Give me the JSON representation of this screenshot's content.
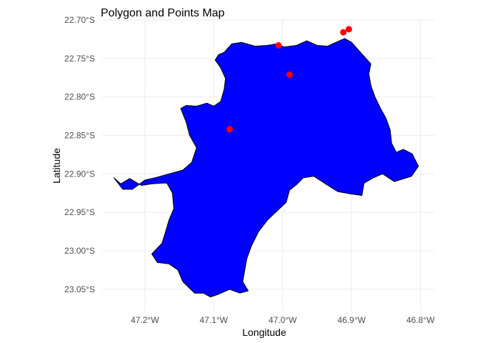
{
  "chart_data": {
    "type": "map",
    "title": "Polygon and Points Map",
    "xlabel": "Longitude",
    "ylabel": "Latitude",
    "xlim": [
      -47.262,
      -46.78
    ],
    "ylim": [
      -23.078,
      -22.7
    ],
    "x_ticks": [
      -47.2,
      -47.1,
      -47.0,
      -46.9,
      -46.8
    ],
    "x_tick_labels": [
      "47.2°W",
      "47.1°W",
      "47.0°W",
      "46.9°W",
      "46.8°W"
    ],
    "y_ticks": [
      -22.7,
      -22.75,
      -22.8,
      -22.85,
      -22.9,
      -22.95,
      -23.0,
      -23.05
    ],
    "y_tick_labels": [
      "22.70°S",
      "22.75°S",
      "22.80°S",
      "22.85°S",
      "22.90°S",
      "22.95°S",
      "23.00°S",
      "23.05°S"
    ],
    "grid": true,
    "polygon": {
      "fill": "#0000ff",
      "stroke": "#000000",
      "coords": [
        [
          -47.074,
          -22.731
        ],
        [
          -47.06,
          -22.729
        ],
        [
          -47.04,
          -22.734
        ],
        [
          -47.022,
          -22.733
        ],
        [
          -47.009,
          -22.731
        ],
        [
          -46.998,
          -22.735
        ],
        [
          -46.98,
          -22.733
        ],
        [
          -46.965,
          -22.727
        ],
        [
          -46.95,
          -22.733
        ],
        [
          -46.935,
          -22.734
        ],
        [
          -46.92,
          -22.728
        ],
        [
          -46.91,
          -22.724
        ],
        [
          -46.9,
          -22.729
        ],
        [
          -46.885,
          -22.744
        ],
        [
          -46.872,
          -22.757
        ],
        [
          -46.875,
          -22.77
        ],
        [
          -46.872,
          -22.785
        ],
        [
          -46.866,
          -22.8
        ],
        [
          -46.858,
          -22.815
        ],
        [
          -46.85,
          -22.828
        ],
        [
          -46.844,
          -22.843
        ],
        [
          -46.842,
          -22.86
        ],
        [
          -46.835,
          -22.872
        ],
        [
          -46.825,
          -22.868
        ],
        [
          -46.812,
          -22.874
        ],
        [
          -46.803,
          -22.89
        ],
        [
          -46.813,
          -22.903
        ],
        [
          -46.838,
          -22.91
        ],
        [
          -46.855,
          -22.9
        ],
        [
          -46.868,
          -22.905
        ],
        [
          -46.882,
          -22.912
        ],
        [
          -46.885,
          -22.928
        ],
        [
          -46.902,
          -22.926
        ],
        [
          -46.92,
          -22.923
        ],
        [
          -46.936,
          -22.914
        ],
        [
          -46.955,
          -22.903
        ],
        [
          -46.97,
          -22.905
        ],
        [
          -46.98,
          -22.914
        ],
        [
          -46.99,
          -22.921
        ],
        [
          -46.995,
          -22.937
        ],
        [
          -47.008,
          -22.948
        ],
        [
          -47.022,
          -22.96
        ],
        [
          -47.035,
          -22.975
        ],
        [
          -47.045,
          -22.993
        ],
        [
          -47.052,
          -23.01
        ],
        [
          -47.055,
          -23.025
        ],
        [
          -47.058,
          -23.04
        ],
        [
          -47.05,
          -23.052
        ],
        [
          -47.062,
          -23.055
        ],
        [
          -47.077,
          -23.05
        ],
        [
          -47.095,
          -23.057
        ],
        [
          -47.105,
          -23.06
        ],
        [
          -47.115,
          -23.055
        ],
        [
          -47.128,
          -23.055
        ],
        [
          -47.145,
          -23.04
        ],
        [
          -47.152,
          -23.025
        ],
        [
          -47.165,
          -23.017
        ],
        [
          -47.182,
          -23.015
        ],
        [
          -47.19,
          -23.004
        ],
        [
          -47.175,
          -22.99
        ],
        [
          -47.17,
          -22.975
        ],
        [
          -47.165,
          -22.96
        ],
        [
          -47.158,
          -22.945
        ],
        [
          -47.16,
          -22.925
        ],
        [
          -47.168,
          -22.912
        ],
        [
          -47.175,
          -22.912
        ],
        [
          -47.19,
          -22.913
        ],
        [
          -47.205,
          -22.915
        ],
        [
          -47.222,
          -22.906
        ],
        [
          -47.235,
          -22.913
        ],
        [
          -47.245,
          -22.905
        ],
        [
          -47.232,
          -22.92
        ],
        [
          -47.218,
          -22.92
        ],
        [
          -47.2,
          -22.908
        ],
        [
          -47.185,
          -22.905
        ],
        [
          -47.165,
          -22.9
        ],
        [
          -47.145,
          -22.895
        ],
        [
          -47.132,
          -22.885
        ],
        [
          -47.125,
          -22.866
        ],
        [
          -47.135,
          -22.85
        ],
        [
          -47.14,
          -22.833
        ],
        [
          -47.148,
          -22.815
        ],
        [
          -47.14,
          -22.811
        ],
        [
          -47.125,
          -22.812
        ],
        [
          -47.11,
          -22.808
        ],
        [
          -47.1,
          -22.812
        ],
        [
          -47.09,
          -22.806
        ],
        [
          -47.085,
          -22.79
        ],
        [
          -47.083,
          -22.776
        ],
        [
          -47.09,
          -22.762
        ],
        [
          -47.098,
          -22.752
        ],
        [
          -47.093,
          -22.745
        ],
        [
          -47.085,
          -22.742
        ],
        [
          -47.074,
          -22.731
        ]
      ]
    },
    "points": {
      "color": "#ff0000",
      "coords": [
        [
          -47.006,
          -22.733
        ],
        [
          -46.99,
          -22.771
        ],
        [
          -47.077,
          -22.842
        ],
        [
          -46.912,
          -22.716
        ],
        [
          -46.904,
          -22.712
        ]
      ]
    }
  }
}
